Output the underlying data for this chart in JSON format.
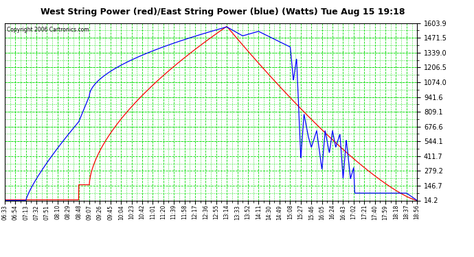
{
  "title": "West String Power (red)/East String Power (blue) (Watts) Tue Aug 15 19:18",
  "copyright": "Copyright 2006 Cartronics.com",
  "y_ticks": [
    14.2,
    146.7,
    279.2,
    411.7,
    544.1,
    676.6,
    809.1,
    941.6,
    1074.0,
    1206.5,
    1339.0,
    1471.5,
    1603.9
  ],
  "y_min": 14.2,
  "y_max": 1603.9,
  "plot_bg_color": "#ffffff",
  "grid_color": "#00dd00",
  "red_color": "#ff0000",
  "blue_color": "#0000ff",
  "x_labels": [
    "06:33",
    "06:54",
    "07:13",
    "07:32",
    "07:51",
    "08:10",
    "08:29",
    "08:48",
    "09:07",
    "09:26",
    "09:45",
    "10:04",
    "10:23",
    "10:42",
    "11:01",
    "11:20",
    "11:39",
    "11:58",
    "12:17",
    "12:36",
    "12:55",
    "13:14",
    "13:33",
    "13:52",
    "14:11",
    "14:30",
    "14:49",
    "15:08",
    "15:27",
    "15:46",
    "16:05",
    "16:24",
    "16:43",
    "17:02",
    "17:21",
    "17:40",
    "17:59",
    "18:18",
    "18:37",
    "18:56"
  ],
  "n_points": 40,
  "title_fontsize": 10
}
